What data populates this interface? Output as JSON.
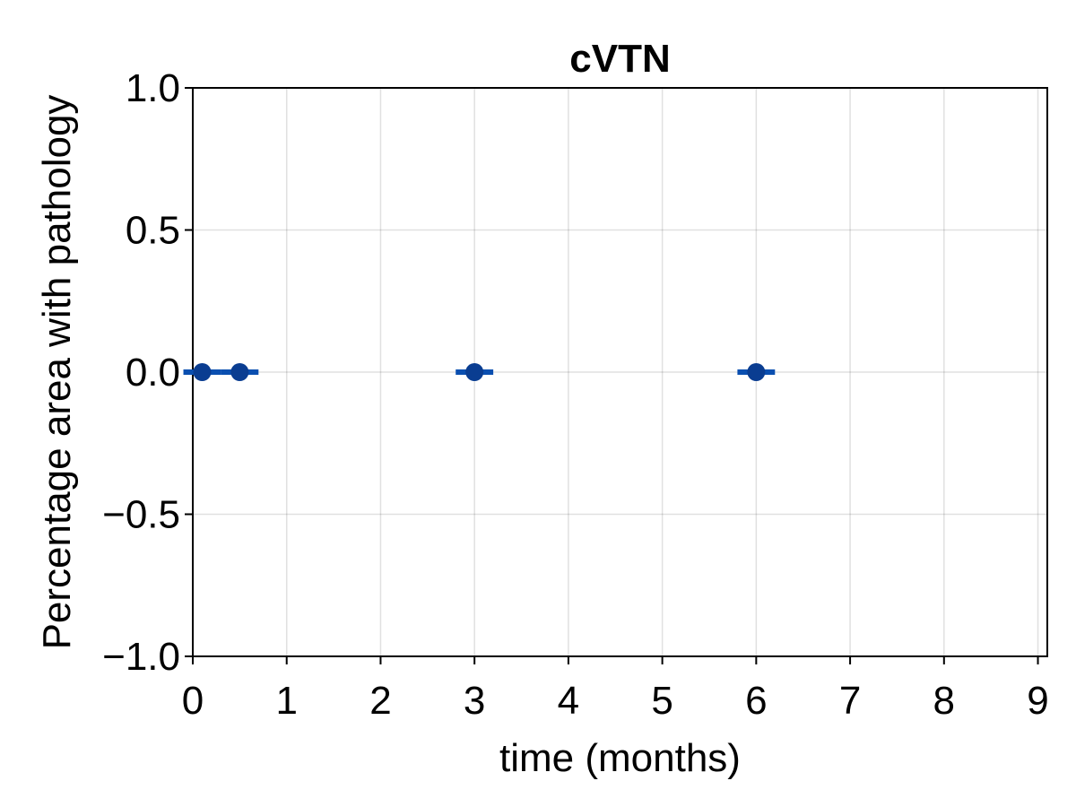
{
  "chart_data": {
    "type": "scatter",
    "title": "cVTN",
    "xlabel": "time (months)",
    "ylabel": "Percentage area with pathology",
    "xlim": [
      0,
      9.1
    ],
    "ylim": [
      -1.0,
      1.0
    ],
    "xticks": [
      0,
      1,
      2,
      3,
      4,
      5,
      6,
      7,
      8,
      9
    ],
    "xtick_labels": [
      "0",
      "1",
      "2",
      "3",
      "4",
      "5",
      "6",
      "7",
      "8",
      "9"
    ],
    "yticks": [
      -1.0,
      -0.5,
      0.0,
      0.5,
      1.0
    ],
    "ytick_labels": [
      "−1.0",
      "−0.5",
      "0.0",
      "0.5",
      "1.0"
    ],
    "grid": true,
    "series": [
      {
        "marker_color": "#0a3d91",
        "errorbar_color": "#0a4fb0",
        "points": [
          {
            "x": 0.1,
            "y": 0.0,
            "err_x": 0.2
          },
          {
            "x": 0.5,
            "y": 0.0,
            "err_x": 0.2
          },
          {
            "x": 3.0,
            "y": 0.0,
            "err_x": 0.2
          },
          {
            "x": 6.0,
            "y": 0.0,
            "err_x": 0.2
          }
        ]
      }
    ]
  }
}
